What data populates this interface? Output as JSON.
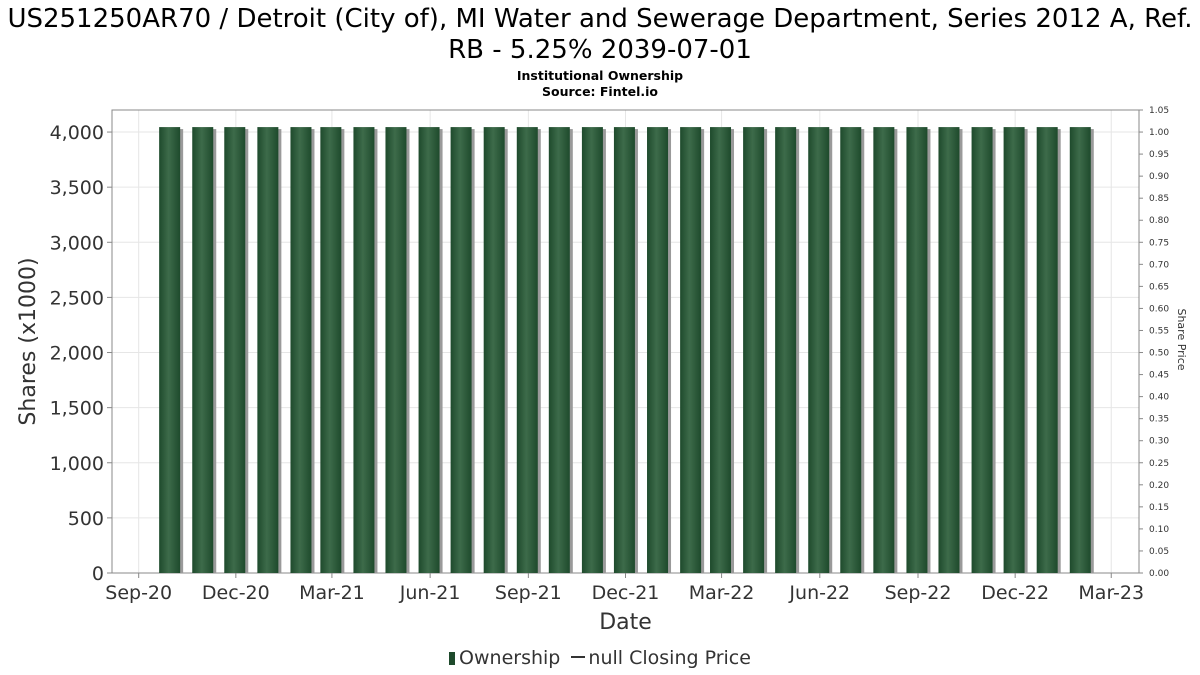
{
  "title": "US251250AR70 / Detroit (City of), MI Water and Sewerage Department, Series 2012 A, Ref. RB - 5.25% 2039-07-01",
  "subtitle_lines": [
    "Institutional Ownership",
    "Source: Fintel.io"
  ],
  "legend": {
    "ownership": "Ownership",
    "price": "null Closing Price"
  },
  "colors": {
    "bar": "#1e4a2c",
    "bar_highlight": "#3d6b4a",
    "bar_shadow": "#9a9a9a",
    "grid": "#e6e6e6",
    "axis": "#888888"
  },
  "chart_data": {
    "type": "bar",
    "xlabel": "Date",
    "ylabel": "Shares (x1000)",
    "y2label": "Share Price",
    "x_tick_labels": [
      "Sep-20",
      "Dec-20",
      "Mar-21",
      "Jun-21",
      "Sep-21",
      "Dec-21",
      "Mar-22",
      "Jun-22",
      "Sep-22",
      "Dec-22",
      "Mar-23"
    ],
    "x_tick_dates": [
      "2020-09-01",
      "2020-12-01",
      "2021-03-01",
      "2021-06-01",
      "2021-09-01",
      "2021-12-01",
      "2022-03-01",
      "2022-06-01",
      "2022-09-01",
      "2022-12-01",
      "2023-03-01"
    ],
    "xlim": [
      "2020-08-07",
      "2023-03-27"
    ],
    "ylim": [
      0,
      4200
    ],
    "y_ticks": [
      "0",
      "500",
      "1,000",
      "1,500",
      "2,000",
      "2,500",
      "3,000",
      "3,500",
      "4,000"
    ],
    "y_tick_values": [
      0,
      500,
      1000,
      1500,
      2000,
      2500,
      3000,
      3500,
      4000
    ],
    "y2lim": [
      0,
      1.05
    ],
    "y2_ticks": [
      "0.00",
      "0.05",
      "0.10",
      "0.15",
      "0.20",
      "0.25",
      "0.30",
      "0.35",
      "0.40",
      "0.45",
      "0.50",
      "0.55",
      "0.60",
      "0.65",
      "0.70",
      "0.75",
      "0.80",
      "0.85",
      "0.90",
      "0.95",
      "1.00",
      "1.05"
    ],
    "y2_tick_values": [
      0,
      0.05,
      0.1,
      0.15,
      0.2,
      0.25,
      0.3,
      0.35,
      0.4,
      0.45,
      0.5,
      0.55,
      0.6,
      0.65,
      0.7,
      0.75,
      0.8,
      0.85,
      0.9,
      0.95,
      1.0,
      1.05
    ],
    "grid": true,
    "legend_position": "bottom",
    "series": [
      {
        "name": "Ownership",
        "x": [
          "2020-09-30",
          "2020-10-31",
          "2020-11-30",
          "2020-12-31",
          "2021-01-31",
          "2021-02-28",
          "2021-03-31",
          "2021-04-30",
          "2021-05-31",
          "2021-06-30",
          "2021-07-31",
          "2021-08-31",
          "2021-09-30",
          "2021-10-31",
          "2021-11-30",
          "2021-12-31",
          "2022-01-31",
          "2022-02-28",
          "2022-03-31",
          "2022-04-30",
          "2022-05-31",
          "2022-06-30",
          "2022-07-31",
          "2022-08-31",
          "2022-09-30",
          "2022-10-31",
          "2022-11-30",
          "2022-12-31",
          "2023-01-31"
        ],
        "values": [
          4045,
          4045,
          4045,
          4045,
          4045,
          4045,
          4045,
          4045,
          4045,
          4045,
          4045,
          4045,
          4045,
          4045,
          4045,
          4045,
          4045,
          4045,
          4045,
          4045,
          4045,
          4045,
          4045,
          4045,
          4045,
          4045,
          4045,
          4045,
          4045
        ]
      }
    ]
  }
}
